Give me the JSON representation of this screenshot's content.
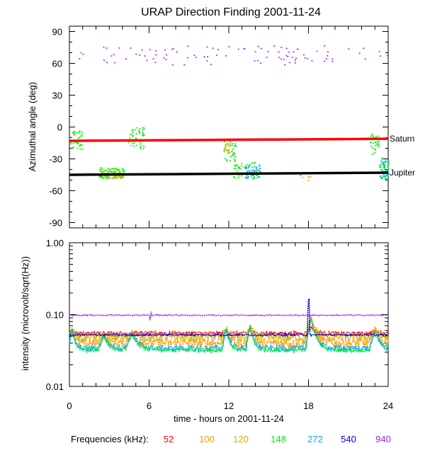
{
  "chart_data": [
    {
      "type": "scatter",
      "title": "URAP Direction Finding  2001-11-24",
      "ylabel": "Azimuthal angle (deg)",
      "xlim": [
        0,
        24
      ],
      "ylim": [
        -95,
        95
      ],
      "yticks": [
        90,
        60,
        30,
        0,
        -30,
        -60,
        -90
      ],
      "reference_lines": [
        {
          "name": "Saturn",
          "color": "#ff0000",
          "points": [
            [
              0,
              -13
            ],
            [
              12,
              -12
            ],
            [
              19,
              -11.5
            ],
            [
              24,
              -11
            ]
          ]
        },
        {
          "name": "Jupiter",
          "color": "#000000",
          "points": [
            [
              0,
              -45
            ],
            [
              12,
              -44
            ],
            [
              24,
              -43
            ]
          ]
        }
      ],
      "clusters": [
        {
          "freq": "940",
          "color": "#a020f0",
          "x_range": [
            0.5,
            24
          ],
          "y_center": 68,
          "y_spread": 9,
          "count": 95
        },
        {
          "freq": "148",
          "color": "#00ee00",
          "x_range": [
            0,
            1.0
          ],
          "y_center": -12,
          "y_spread": 9,
          "count": 40
        },
        {
          "freq": "148",
          "color": "#00ee00",
          "x_range": [
            2.2,
            4.1
          ],
          "y_center": -43,
          "y_spread": 5,
          "count": 90
        },
        {
          "freq": "120",
          "color": "#d4b000",
          "x_range": [
            2.2,
            4.1
          ],
          "y_center": -44,
          "y_spread": 4,
          "count": 45
        },
        {
          "freq": "148",
          "color": "#00ee00",
          "x_range": [
            4.4,
            5.6
          ],
          "y_center": -10,
          "y_spread": 10,
          "count": 50
        },
        {
          "freq": "148",
          "color": "#00ee00",
          "x_range": [
            11.6,
            12.5
          ],
          "y_center": -22,
          "y_spread": 10,
          "count": 35
        },
        {
          "freq": "120",
          "color": "#d4b000",
          "x_range": [
            11.6,
            12.3
          ],
          "y_center": -18,
          "y_spread": 6,
          "count": 20
        },
        {
          "freq": "148",
          "color": "#00ee00",
          "x_range": [
            12.3,
            14.4
          ],
          "y_center": -40,
          "y_spread": 8,
          "count": 60
        },
        {
          "freq": "272",
          "color": "#00b0f0",
          "x_range": [
            13.2,
            14.3
          ],
          "y_center": -42,
          "y_spread": 6,
          "count": 45
        },
        {
          "freq": "100",
          "color": "#ff9900",
          "x_range": [
            17.3,
            18.3
          ],
          "y_center": -46,
          "y_spread": 4,
          "count": 8
        },
        {
          "freq": "148",
          "color": "#00ee00",
          "x_range": [
            22.6,
            23.3
          ],
          "y_center": -15,
          "y_spread": 10,
          "count": 30
        },
        {
          "freq": "272",
          "color": "#00b0f0",
          "x_range": [
            23.4,
            24
          ],
          "y_center": -40,
          "y_spread": 10,
          "count": 45
        },
        {
          "freq": "148",
          "color": "#00ee00",
          "x_range": [
            23.3,
            24
          ],
          "y_center": -38,
          "y_spread": 10,
          "count": 30
        }
      ]
    },
    {
      "type": "line",
      "xlabel": "time - hours on 2001-11-24",
      "ylabel": "intensity (microvolt/sqrt(Hz))",
      "yscale": "log",
      "ylim": [
        0.01,
        1.0
      ],
      "yticks": [
        "1.00",
        "0.10",
        "0.01"
      ],
      "xlim": [
        0,
        24
      ],
      "xticks": [
        "0",
        "6",
        "12",
        "18",
        "24"
      ],
      "series": [
        {
          "name": "52",
          "color": "#ff0000",
          "baseline": 0.055,
          "wobble": 0.003
        },
        {
          "name": "100",
          "color": "#ff9900",
          "baseline": 0.04,
          "wobble": 0.006
        },
        {
          "name": "120",
          "color": "#d4b000",
          "baseline": 0.048,
          "wobble": 0.007
        },
        {
          "name": "148",
          "color": "#00ee00",
          "baseline": 0.032,
          "wobble": 0.002
        },
        {
          "name": "272",
          "color": "#00b0f0",
          "baseline": 0.034,
          "wobble": 0.003
        },
        {
          "name": "540",
          "color": "#0000dd",
          "baseline": 0.052,
          "wobble": 0.0015
        },
        {
          "name": "940",
          "color": "#a020f0",
          "baseline": 0.098,
          "wobble": 0.0015
        }
      ],
      "bursts": [
        {
          "x": 0.2,
          "peak": 0.068,
          "width": 0.25
        },
        {
          "x": 2.6,
          "peak": 0.055,
          "width": 0.4
        },
        {
          "x": 4.7,
          "peak": 0.058,
          "width": 0.5
        },
        {
          "x": 11.8,
          "peak": 0.07,
          "width": 0.3
        },
        {
          "x": 13.6,
          "peak": 0.075,
          "width": 0.3
        },
        {
          "x": 18.2,
          "peak": 0.1,
          "width": 0.4
        },
        {
          "x": 23.0,
          "peak": 0.065,
          "width": 0.4
        }
      ],
      "spikes": [
        {
          "x": 6.1,
          "freq": "940",
          "peak": 0.13
        },
        {
          "x": 18.0,
          "freq": "540",
          "peak": 0.17
        }
      ]
    }
  ],
  "legend": {
    "label": "Frequencies (kHz):",
    "items": [
      {
        "text": "52",
        "color": "#ff0000"
      },
      {
        "text": "100",
        "color": "#ff9900"
      },
      {
        "text": "120",
        "color": "#d4b000"
      },
      {
        "text": "148",
        "color": "#00ee00"
      },
      {
        "text": "272",
        "color": "#00b0f0"
      },
      {
        "text": "540",
        "color": "#0000dd"
      },
      {
        "text": "940",
        "color": "#a020f0"
      }
    ]
  }
}
